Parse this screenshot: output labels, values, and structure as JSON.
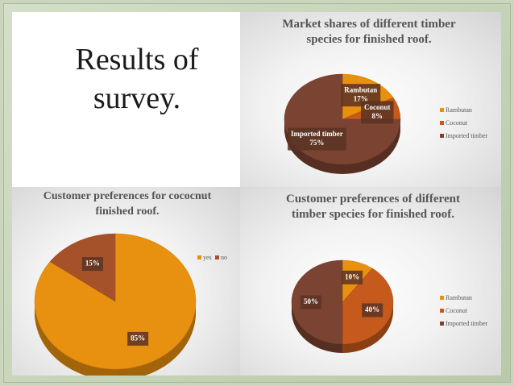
{
  "slide_title": "Results of survey.",
  "chart_data": [
    {
      "type": "pie",
      "title": "Market shares of different timber species for finished roof.",
      "categories": [
        "Rambutan",
        "Coconut",
        "Imported timber"
      ],
      "values": [
        17,
        8,
        75
      ],
      "value_labels": [
        "17%",
        "8%",
        "75%"
      ],
      "colors": [
        "#e8900f",
        "#c55a1c",
        "#7b4331"
      ],
      "legend": "right",
      "data_labels": "category_and_value"
    },
    {
      "type": "pie",
      "title": "Customer preferences for cococnut finished roof.",
      "categories": [
        "yes",
        "no"
      ],
      "values": [
        85,
        15
      ],
      "value_labels": [
        "85%",
        "15%"
      ],
      "colors": [
        "#e8900f",
        "#a5522a"
      ],
      "legend": "top",
      "data_labels": "value"
    },
    {
      "type": "pie",
      "title": "Customer preferences of different timber species for finished roof.",
      "categories": [
        "Rambutan",
        "Coconut",
        "Imported timber"
      ],
      "values": [
        10,
        40,
        50
      ],
      "value_labels": [
        "10%",
        "40%",
        "50%"
      ],
      "colors": [
        "#e8900f",
        "#c55a1c",
        "#7b4331"
      ],
      "legend": "right",
      "data_labels": "value"
    }
  ]
}
